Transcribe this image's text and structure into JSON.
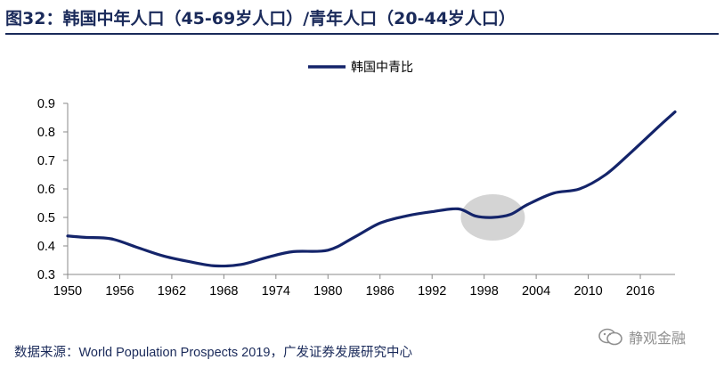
{
  "title": "图32：韩国中年人口（45-69岁人口）/青年人口（20-44岁人口）",
  "source": "数据来源：World Population Prospects 2019，广发证券发展研究中心",
  "watermark": {
    "text": "静观金融",
    "icon": "wechat-icon"
  },
  "colors": {
    "line": "#14246a",
    "title": "#1a2a5a",
    "highlight": "#cfcfcf",
    "axis": "#888888"
  },
  "chart_data": {
    "type": "line",
    "title": "",
    "xlabel": "",
    "ylabel": "",
    "legend": {
      "placement": "top-center"
    },
    "grid": false,
    "xlim": [
      1950,
      2020
    ],
    "ylim": [
      0.3,
      0.9
    ],
    "x_ticks": [
      "1950",
      "1956",
      "1962",
      "1968",
      "1974",
      "1980",
      "1986",
      "1992",
      "1998",
      "2004",
      "2010",
      "2016"
    ],
    "y_ticks": [
      "0.3",
      "0.4",
      "0.5",
      "0.6",
      "0.7",
      "0.8",
      "0.9"
    ],
    "highlight": {
      "shape": "ellipse",
      "x": 1999,
      "y": 0.5
    },
    "series": [
      {
        "name": "韩国中青比",
        "x": [
          1950,
          1952,
          1955,
          1958,
          1961,
          1964,
          1967,
          1970,
          1973,
          1976,
          1980,
          1983,
          1986,
          1989,
          1992,
          1995,
          1997,
          1999,
          2001,
          2003,
          2006,
          2009,
          2012,
          2015,
          2018,
          2020
        ],
        "y": [
          0.435,
          0.43,
          0.425,
          0.395,
          0.365,
          0.345,
          0.33,
          0.335,
          0.36,
          0.38,
          0.385,
          0.43,
          0.48,
          0.505,
          0.52,
          0.53,
          0.505,
          0.5,
          0.51,
          0.545,
          0.585,
          0.6,
          0.65,
          0.73,
          0.815,
          0.87
        ]
      }
    ]
  }
}
